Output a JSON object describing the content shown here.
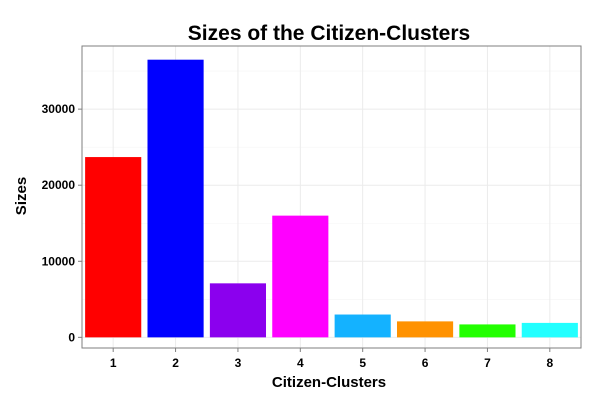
{
  "chart_data": {
    "type": "bar",
    "title": "Sizes of the Citizen-Clusters",
    "xlabel": "Citizen-Clusters",
    "ylabel": "Sizes",
    "categories": [
      "1",
      "2",
      "3",
      "4",
      "5",
      "6",
      "7",
      "8"
    ],
    "values": [
      23700,
      36500,
      7100,
      16000,
      3000,
      2100,
      1700,
      1900
    ],
    "colors": [
      "#ff0000",
      "#0000ff",
      "#8b00ee",
      "#ff00ff",
      "#14b2ff",
      "#ff9200",
      "#22ff00",
      "#22ffff"
    ],
    "ylim": [
      -1400,
      38300
    ],
    "yticks": [
      0,
      10000,
      20000,
      30000
    ],
    "ytick_labels": [
      "0",
      "10000",
      "20000",
      "30000"
    ],
    "grid": true,
    "legend": "none"
  }
}
